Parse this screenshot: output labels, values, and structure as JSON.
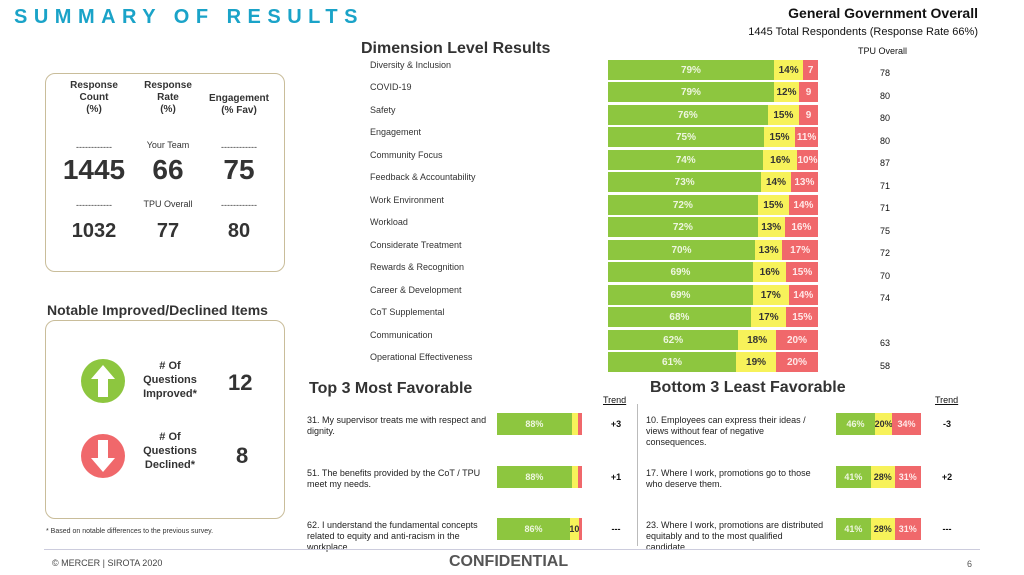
{
  "header": {
    "title": "SUMMARY OF RESULTS",
    "org": "General Government Overall",
    "respondents": "1445 Total Respondents (Response Rate  66%)"
  },
  "summary": {
    "col1_head": [
      "Response",
      "Count",
      "(%)"
    ],
    "col2_head": [
      "Response",
      "Rate",
      "(%)"
    ],
    "col3_head": [
      "Engagement",
      "(% Fav)"
    ],
    "dash": "------------",
    "your_team_label": "Your Team",
    "tpu_overall_label": "TPU Overall",
    "team": {
      "count": "1445",
      "rate": "66",
      "engagement": "75"
    },
    "tpu": {
      "count": "1032",
      "rate": "77",
      "engagement": "80"
    }
  },
  "notable": {
    "title": "Notable Improved/Declined Items",
    "improved_label": [
      "# Of",
      "Questions",
      "Improved*"
    ],
    "improved_value": "12",
    "declined_label": [
      "# Of",
      "Questions",
      "Declined*"
    ],
    "declined_value": "8",
    "footnote": "* Based on notable differences to the previous survey.",
    "colors": {
      "improved": "#8dc63f",
      "declined": "#f0686b"
    }
  },
  "dimensions": {
    "title": "Dimension Level Results",
    "tpu_header": "TPU Overall",
    "items": [
      {
        "label": "Diversity & Inclusion",
        "fav": 79,
        "neutral": 14,
        "unfav": 7,
        "fav_txt": "79%",
        "neutral_txt": "14%",
        "unfav_txt": "7",
        "tpu": "78"
      },
      {
        "label": "COVID-19",
        "fav": 79,
        "neutral": 12,
        "unfav": 9,
        "fav_txt": "79%",
        "neutral_txt": "12%",
        "unfav_txt": "9",
        "tpu": "80"
      },
      {
        "label": "Safety",
        "fav": 76,
        "neutral": 15,
        "unfav": 9,
        "fav_txt": "76%",
        "neutral_txt": "15%",
        "unfav_txt": "9",
        "tpu": "80"
      },
      {
        "label": "Engagement",
        "fav": 75,
        "neutral": 15,
        "unfav": 11,
        "fav_txt": "75%",
        "neutral_txt": "15%",
        "unfav_txt": "11%",
        "tpu": "80"
      },
      {
        "label": "Community Focus",
        "fav": 74,
        "neutral": 16,
        "unfav": 10,
        "fav_txt": "74%",
        "neutral_txt": "16%",
        "unfav_txt": "10%",
        "tpu": "87"
      },
      {
        "label": "Feedback & Accountability",
        "fav": 73,
        "neutral": 14,
        "unfav": 13,
        "fav_txt": "73%",
        "neutral_txt": "14%",
        "unfav_txt": "13%",
        "tpu": "71"
      },
      {
        "label": "Work Environment",
        "fav": 72,
        "neutral": 15,
        "unfav": 14,
        "fav_txt": "72%",
        "neutral_txt": "15%",
        "unfav_txt": "14%",
        "tpu": "71"
      },
      {
        "label": "Workload",
        "fav": 72,
        "neutral": 13,
        "unfav": 16,
        "fav_txt": "72%",
        "neutral_txt": "13%",
        "unfav_txt": "16%",
        "tpu": "75"
      },
      {
        "label": "Considerate Treatment",
        "fav": 70,
        "neutral": 13,
        "unfav": 17,
        "fav_txt": "70%",
        "neutral_txt": "13%",
        "unfav_txt": "17%",
        "tpu": "72"
      },
      {
        "label": "Rewards & Recognition",
        "fav": 69,
        "neutral": 16,
        "unfav": 15,
        "fav_txt": "69%",
        "neutral_txt": "16%",
        "unfav_txt": "15%",
        "tpu": "70"
      },
      {
        "label": "Career & Development",
        "fav": 69,
        "neutral": 17,
        "unfav": 14,
        "fav_txt": "69%",
        "neutral_txt": "17%",
        "unfav_txt": "14%",
        "tpu": "74"
      },
      {
        "label": "CoT Supplemental",
        "fav": 68,
        "neutral": 17,
        "unfav": 15,
        "fav_txt": "68%",
        "neutral_txt": "17%",
        "unfav_txt": "15%",
        "tpu": ""
      },
      {
        "label": "Communication",
        "fav": 62,
        "neutral": 18,
        "unfav": 20,
        "fav_txt": "62%",
        "neutral_txt": "18%",
        "unfav_txt": "20%",
        "tpu": "63"
      },
      {
        "label": "Operational Effectiveness",
        "fav": 61,
        "neutral": 19,
        "unfav": 20,
        "fav_txt": "61%",
        "neutral_txt": "19%",
        "unfav_txt": "20%",
        "tpu": "58"
      }
    ]
  },
  "top3": {
    "title": "Top 3 Most Favorable",
    "trend_header": "Trend",
    "items": [
      {
        "text": "31. My supervisor treats me with respect and dignity.",
        "fav": 88,
        "neutral": 7,
        "unfav": 5,
        "fav_txt": "88%",
        "neutral_txt": "",
        "unfav_txt": "",
        "trend": "+3"
      },
      {
        "text": "51. The benefits provided by the CoT / TPU meet my needs.",
        "fav": 88,
        "neutral": 7,
        "unfav": 5,
        "fav_txt": "88%",
        "neutral_txt": "",
        "unfav_txt": "",
        "trend": "+1"
      },
      {
        "text": "62. I understand the fundamental concepts related to equity and anti-racism in the workplace.",
        "fav": 86,
        "neutral": 10,
        "unfav": 4,
        "fav_txt": "86%",
        "neutral_txt": "10",
        "unfav_txt": "",
        "trend": "---"
      }
    ]
  },
  "bottom3": {
    "title": "Bottom 3 Least Favorable",
    "trend_header": "Trend",
    "items": [
      {
        "text": "10. Employees can express their ideas / views without fear of negative consequences.",
        "fav": 46,
        "neutral": 20,
        "unfav": 34,
        "fav_txt": "46%",
        "neutral_txt": "20%",
        "unfav_txt": "34%",
        "trend": "-3"
      },
      {
        "text": "17. Where I work, promotions go to those who deserve them.",
        "fav": 41,
        "neutral": 28,
        "unfav": 31,
        "fav_txt": "41%",
        "neutral_txt": "28%",
        "unfav_txt": "31%",
        "trend": "+2"
      },
      {
        "text": "23. Where I work, promotions are distributed equitably and to the most qualified candidate.",
        "fav": 41,
        "neutral": 28,
        "unfav": 31,
        "fav_txt": "41%",
        "neutral_txt": "28%",
        "unfav_txt": "31%",
        "trend": "---"
      }
    ]
  },
  "footer": {
    "copyright": "© MERCER | SIROTA 2020",
    "confidential": "CONFIDENTIAL",
    "page": "6"
  },
  "colors": {
    "favorable": "#8dc63f",
    "neutral": "#f7f25a",
    "unfavorable": "#f0686b",
    "title_accent": "#1aa3c8"
  }
}
